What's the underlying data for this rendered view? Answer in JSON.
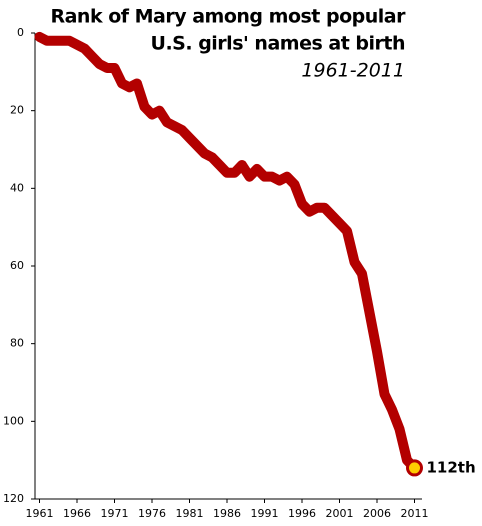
{
  "chart_data": {
    "type": "line",
    "title": [
      "Rank of Mary among most popular",
      "U.S. girls' names at birth"
    ],
    "subtitle": "1961-2011",
    "x": [
      1961,
      1962,
      1963,
      1964,
      1965,
      1966,
      1967,
      1968,
      1969,
      1970,
      1971,
      1972,
      1973,
      1974,
      1975,
      1976,
      1977,
      1978,
      1979,
      1980,
      1981,
      1982,
      1983,
      1984,
      1985,
      1986,
      1987,
      1988,
      1989,
      1990,
      1991,
      1992,
      1993,
      1994,
      1995,
      1996,
      1997,
      1998,
      1999,
      2000,
      2001,
      2002,
      2003,
      2004,
      2005,
      2006,
      2007,
      2008,
      2009,
      2010,
      2011
    ],
    "values": [
      1,
      2,
      2,
      2,
      2,
      3,
      4,
      6,
      8,
      9,
      9,
      13,
      14,
      13,
      19,
      21,
      20,
      23,
      24,
      25,
      27,
      29,
      31,
      32,
      34,
      36,
      36,
      34,
      37,
      35,
      37,
      37,
      38,
      37,
      39,
      44,
      46,
      45,
      45,
      47,
      49,
      51,
      59,
      62,
      72,
      82,
      93,
      97,
      102,
      110,
      112
    ],
    "color": "#b30000",
    "xlim": [
      1960.4,
      2012
    ],
    "xticks": [
      1961,
      1966,
      1971,
      1976,
      1981,
      1986,
      1991,
      1996,
      2001,
      2006,
      2011
    ],
    "ylim": [
      0,
      120
    ],
    "yticks": [
      0,
      20,
      40,
      60,
      80,
      100,
      120
    ],
    "y_inverted": true,
    "annotation": {
      "x": 2011,
      "y": 112,
      "text": "112th",
      "color": "#ffcc00"
    }
  }
}
